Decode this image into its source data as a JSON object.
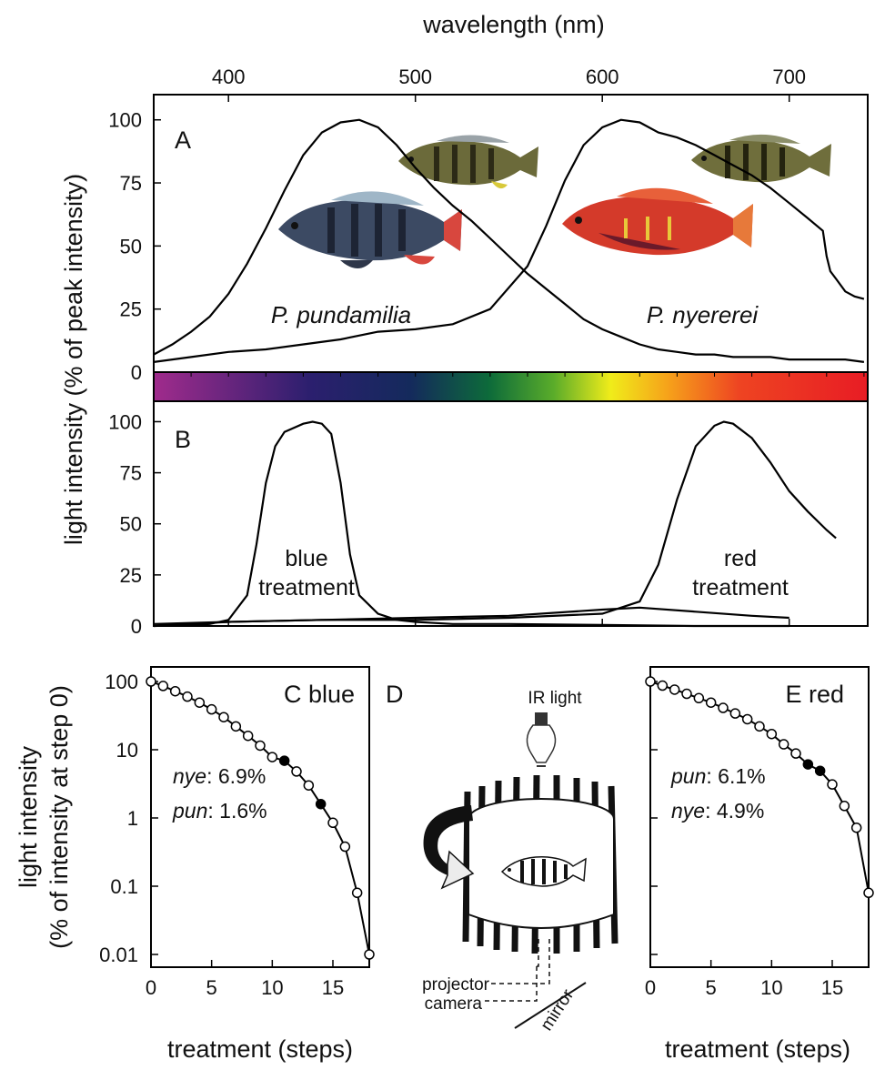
{
  "chart_data": [
    {
      "panel": "A",
      "type": "line",
      "x_axis_label": "wavelength (nm)",
      "x_ticks": [
        400,
        500,
        600,
        700
      ],
      "xlim": [
        360,
        742
      ],
      "ylabel": "light intensity (% of peak intensity)",
      "y_ticks": [
        0,
        25,
        50,
        75,
        100
      ],
      "ylim": [
        0,
        110
      ],
      "panel_label": "A",
      "species_labels": [
        "P. pundamilia",
        "P. nyererei"
      ],
      "series": [
        {
          "x": [
            360,
            370,
            380,
            390,
            400,
            410,
            420,
            430,
            440,
            450,
            460,
            470,
            480,
            490,
            500,
            510,
            520,
            530,
            540,
            550,
            560,
            570,
            580,
            590,
            600,
            610,
            620,
            630,
            640,
            650,
            660,
            670,
            680,
            690,
            700,
            710,
            720,
            730,
            740
          ],
          "y": [
            7,
            11,
            16,
            22,
            31,
            43,
            57,
            72,
            86,
            95,
            99,
            100,
            97,
            90,
            81,
            73,
            66,
            60,
            53,
            46,
            39,
            33,
            27,
            21,
            17,
            14,
            11,
            9,
            8,
            7,
            7,
            6,
            6,
            6,
            5,
            5,
            5,
            5,
            4
          ]
        },
        {
          "x": [
            360,
            380,
            400,
            420,
            440,
            460,
            480,
            500,
            520,
            540,
            560,
            570,
            580,
            590,
            600,
            610,
            620,
            630,
            640,
            650,
            660,
            670,
            680,
            690,
            700,
            710,
            718,
            720,
            722,
            725,
            730,
            735,
            740
          ],
          "y": [
            4,
            6,
            8,
            9,
            11,
            13,
            16,
            17,
            19,
            25,
            42,
            58,
            76,
            90,
            97,
            100,
            99,
            95,
            93,
            90,
            86,
            82,
            78,
            73,
            67,
            61,
            56,
            46,
            40,
            37,
            32,
            30,
            29
          ]
        }
      ]
    },
    {
      "panel": "B",
      "type": "line",
      "xlim": [
        360,
        742
      ],
      "y_ticks": [
        0,
        25,
        50,
        75,
        100
      ],
      "ylim": [
        0,
        110
      ],
      "panel_label": "B",
      "series_labels": [
        {
          "line1": "blue",
          "line2": "treatment"
        },
        {
          "line1": "red",
          "line2": "treatment"
        }
      ],
      "series": [
        {
          "x": [
            360,
            380,
            390,
            400,
            410,
            415,
            420,
            425,
            430,
            440,
            445,
            450,
            455,
            460,
            465,
            470,
            480,
            490,
            500,
            520,
            550,
            600,
            650,
            700
          ],
          "y": [
            0,
            0.5,
            1,
            3,
            15,
            40,
            70,
            88,
            95,
            99,
            100,
            99,
            94,
            70,
            35,
            15,
            6,
            3,
            2,
            1,
            1,
            0.5,
            0,
            0
          ]
        },
        {
          "x": [
            360,
            400,
            450,
            500,
            550,
            600,
            620,
            630,
            640,
            650,
            660,
            665,
            670,
            680,
            690,
            700,
            710,
            720,
            725
          ],
          "y": [
            1,
            2,
            3,
            3,
            4,
            6,
            12,
            30,
            62,
            88,
            98,
            100,
            99,
            92,
            80,
            66,
            56,
            47,
            43
          ]
        },
        {
          "x": [
            360,
            400,
            450,
            500,
            550,
            600,
            620,
            650,
            680,
            700
          ],
          "y": [
            0,
            2,
            3,
            4,
            5,
            8,
            9,
            7,
            5,
            4
          ]
        }
      ]
    },
    {
      "panel": "C",
      "type": "line",
      "panel_label": "C blue",
      "xlabel": "treatment (steps)",
      "ylabel_line1": "light intensity",
      "ylabel_line2": "(% of intensity at step 0)",
      "y_scale": "log",
      "xlim": [
        0,
        18
      ],
      "ylim": [
        0.01,
        100
      ],
      "x_ticks": [
        0,
        5,
        10,
        15
      ],
      "y_ticks": [
        "100",
        "10",
        "1",
        "0.1",
        "0.01"
      ],
      "x": [
        0,
        1,
        2,
        3,
        4,
        5,
        6,
        7,
        8,
        9,
        10,
        11,
        12,
        13,
        14,
        15,
        16,
        17,
        18
      ],
      "y": [
        100,
        86,
        72,
        60,
        49,
        39,
        30,
        22,
        16,
        11.5,
        7.8,
        6.9,
        4.8,
        3.0,
        1.6,
        0.85,
        0.38,
        0.08,
        0.01
      ],
      "filled_points": [
        11,
        14
      ],
      "annotations": [
        {
          "species": "nye",
          "value": "6.9%"
        },
        {
          "species": "pun",
          "value": "1.6%"
        }
      ]
    },
    {
      "panel": "D",
      "type": "diagram",
      "panel_label": "D",
      "labels": {
        "light": "IR light",
        "projector": "projector",
        "camera": "camera",
        "mirror": "mirror"
      }
    },
    {
      "panel": "E",
      "type": "line",
      "panel_label": "E red",
      "xlabel": "treatment (steps)",
      "y_scale": "log",
      "xlim": [
        0,
        18
      ],
      "ylim": [
        0.01,
        100
      ],
      "x_ticks": [
        0,
        5,
        10,
        15
      ],
      "x": [
        0,
        1,
        2,
        3,
        4,
        5,
        6,
        7,
        8,
        9,
        10,
        11,
        12,
        13,
        14,
        15,
        16,
        17,
        18
      ],
      "y": [
        100,
        87,
        76,
        66,
        57,
        49,
        41,
        34,
        28,
        22,
        17,
        12,
        8.8,
        6.1,
        4.9,
        3.1,
        1.5,
        0.72,
        0.08
      ],
      "filled_points": [
        13,
        14
      ],
      "annotations": [
        {
          "species": "pun",
          "value": "6.1%"
        },
        {
          "species": "nye",
          "value": "4.9%"
        }
      ]
    }
  ]
}
